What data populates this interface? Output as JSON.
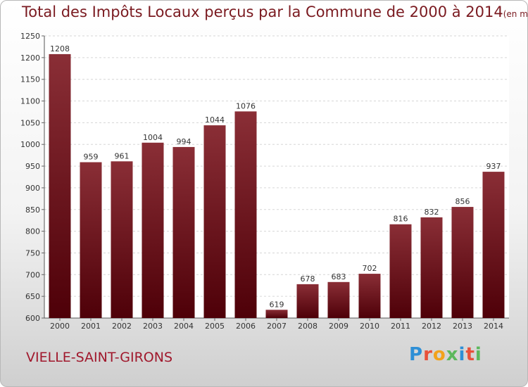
{
  "header": {
    "title": "Total des Impôts Locaux perçus par la Commune de 2000 à 2014",
    "unit": "(en milliers d'€)"
  },
  "footer": {
    "commune": "VIELLE-SAINT-GIRONS",
    "logo": "Proxiti"
  },
  "colors": {
    "bar_top": "#8a2e36",
    "bar_bottom": "#4e0008",
    "title": "#7a1a20"
  },
  "chart_data": {
    "type": "bar",
    "title": "Total des Impôts Locaux perçus par la Commune de 2000 à 2014",
    "categories": [
      "2000",
      "2001",
      "2002",
      "2003",
      "2004",
      "2005",
      "2006",
      "2007",
      "2008",
      "2009",
      "2010",
      "2011",
      "2012",
      "2013",
      "2014"
    ],
    "values": [
      1208,
      959,
      961,
      1004,
      994,
      1044,
      1076,
      619,
      678,
      683,
      702,
      816,
      832,
      856,
      937
    ],
    "ylim": [
      600,
      1250
    ],
    "yticks": [
      600,
      650,
      700,
      750,
      800,
      850,
      900,
      950,
      1000,
      1050,
      1100,
      1150,
      1200,
      1250
    ],
    "grid": true,
    "data_labels": true
  }
}
